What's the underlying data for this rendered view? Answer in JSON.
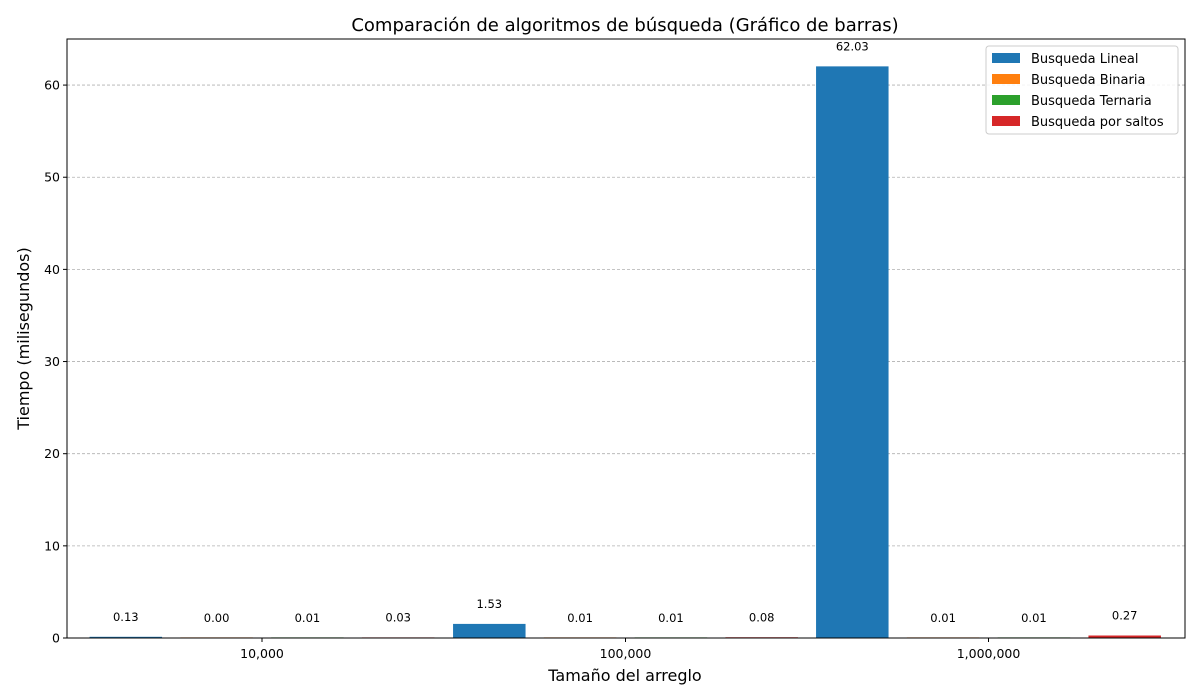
{
  "chart_data": {
    "type": "bar",
    "title": "Comparación de algoritmos de búsqueda (Gráfico de barras)",
    "xlabel": "Tamaño del arreglo",
    "ylabel": "Tiempo (milisegundos)",
    "categories": [
      "10,000",
      "100,000",
      "1,000,000"
    ],
    "series": [
      {
        "name": "Busqueda Lineal",
        "color": "#1f77b4",
        "values": [
          0.13,
          1.53,
          62.03
        ],
        "labels": [
          "0.13",
          "1.53",
          "62.03"
        ]
      },
      {
        "name": "Busqueda Binaria",
        "color": "#ff7f0e",
        "values": [
          0.0,
          0.01,
          0.01
        ],
        "labels": [
          "0.00",
          "0.01",
          "0.01"
        ]
      },
      {
        "name": "Busqueda Ternaria",
        "color": "#2ca02c",
        "values": [
          0.01,
          0.01,
          0.01
        ],
        "labels": [
          "0.01",
          "0.01",
          "0.01"
        ]
      },
      {
        "name": "Busqueda por saltos",
        "color": "#d62728",
        "values": [
          0.03,
          0.08,
          0.27
        ],
        "labels": [
          "0.03",
          "0.08",
          "0.27"
        ]
      }
    ],
    "ylim": [
      0,
      65
    ],
    "yticks": [
      0,
      10,
      20,
      30,
      40,
      50,
      60
    ],
    "grid": "horizontal dashed",
    "legend_position": "top-right"
  }
}
